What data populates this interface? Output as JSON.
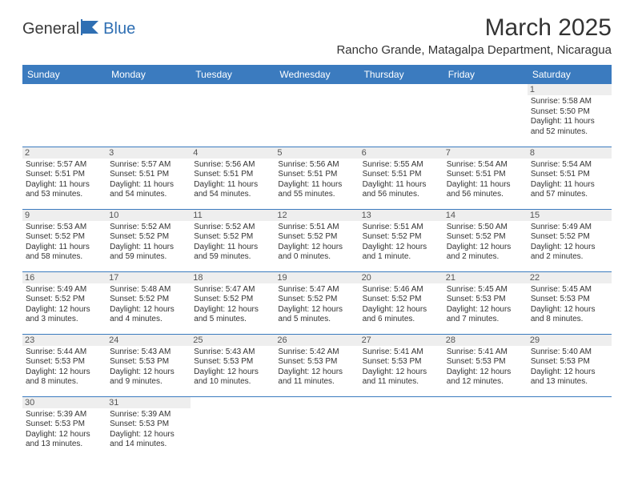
{
  "brand": {
    "text1": "General",
    "text2": "Blue"
  },
  "header": {
    "month_title": "March 2025",
    "location": "Rancho Grande, Matagalpa Department, Nicaragua"
  },
  "colors": {
    "header_bg": "#3b7bbf",
    "header_fg": "#ffffff",
    "daynum_bg": "#eeeeee",
    "border": "#3b7bbf",
    "text": "#333333",
    "brand_blue": "#2f6fb3"
  },
  "typography": {
    "month_title_fontsize": 30,
    "location_fontsize": 15,
    "day_header_fontsize": 12,
    "daynum_fontsize": 11,
    "details_fontsize": 10
  },
  "calendar": {
    "type": "table",
    "columns": [
      "Sunday",
      "Monday",
      "Tuesday",
      "Wednesday",
      "Thursday",
      "Friday",
      "Saturday"
    ],
    "weeks": [
      [
        null,
        null,
        null,
        null,
        null,
        null,
        {
          "n": "1",
          "sr": "5:58 AM",
          "ss": "5:50 PM",
          "dl": "11 hours and 52 minutes."
        }
      ],
      [
        {
          "n": "2",
          "sr": "5:57 AM",
          "ss": "5:51 PM",
          "dl": "11 hours and 53 minutes."
        },
        {
          "n": "3",
          "sr": "5:57 AM",
          "ss": "5:51 PM",
          "dl": "11 hours and 54 minutes."
        },
        {
          "n": "4",
          "sr": "5:56 AM",
          "ss": "5:51 PM",
          "dl": "11 hours and 54 minutes."
        },
        {
          "n": "5",
          "sr": "5:56 AM",
          "ss": "5:51 PM",
          "dl": "11 hours and 55 minutes."
        },
        {
          "n": "6",
          "sr": "5:55 AM",
          "ss": "5:51 PM",
          "dl": "11 hours and 56 minutes."
        },
        {
          "n": "7",
          "sr": "5:54 AM",
          "ss": "5:51 PM",
          "dl": "11 hours and 56 minutes."
        },
        {
          "n": "8",
          "sr": "5:54 AM",
          "ss": "5:51 PM",
          "dl": "11 hours and 57 minutes."
        }
      ],
      [
        {
          "n": "9",
          "sr": "5:53 AM",
          "ss": "5:52 PM",
          "dl": "11 hours and 58 minutes."
        },
        {
          "n": "10",
          "sr": "5:52 AM",
          "ss": "5:52 PM",
          "dl": "11 hours and 59 minutes."
        },
        {
          "n": "11",
          "sr": "5:52 AM",
          "ss": "5:52 PM",
          "dl": "11 hours and 59 minutes."
        },
        {
          "n": "12",
          "sr": "5:51 AM",
          "ss": "5:52 PM",
          "dl": "12 hours and 0 minutes."
        },
        {
          "n": "13",
          "sr": "5:51 AM",
          "ss": "5:52 PM",
          "dl": "12 hours and 1 minute."
        },
        {
          "n": "14",
          "sr": "5:50 AM",
          "ss": "5:52 PM",
          "dl": "12 hours and 2 minutes."
        },
        {
          "n": "15",
          "sr": "5:49 AM",
          "ss": "5:52 PM",
          "dl": "12 hours and 2 minutes."
        }
      ],
      [
        {
          "n": "16",
          "sr": "5:49 AM",
          "ss": "5:52 PM",
          "dl": "12 hours and 3 minutes."
        },
        {
          "n": "17",
          "sr": "5:48 AM",
          "ss": "5:52 PM",
          "dl": "12 hours and 4 minutes."
        },
        {
          "n": "18",
          "sr": "5:47 AM",
          "ss": "5:52 PM",
          "dl": "12 hours and 5 minutes."
        },
        {
          "n": "19",
          "sr": "5:47 AM",
          "ss": "5:52 PM",
          "dl": "12 hours and 5 minutes."
        },
        {
          "n": "20",
          "sr": "5:46 AM",
          "ss": "5:52 PM",
          "dl": "12 hours and 6 minutes."
        },
        {
          "n": "21",
          "sr": "5:45 AM",
          "ss": "5:53 PM",
          "dl": "12 hours and 7 minutes."
        },
        {
          "n": "22",
          "sr": "5:45 AM",
          "ss": "5:53 PM",
          "dl": "12 hours and 8 minutes."
        }
      ],
      [
        {
          "n": "23",
          "sr": "5:44 AM",
          "ss": "5:53 PM",
          "dl": "12 hours and 8 minutes."
        },
        {
          "n": "24",
          "sr": "5:43 AM",
          "ss": "5:53 PM",
          "dl": "12 hours and 9 minutes."
        },
        {
          "n": "25",
          "sr": "5:43 AM",
          "ss": "5:53 PM",
          "dl": "12 hours and 10 minutes."
        },
        {
          "n": "26",
          "sr": "5:42 AM",
          "ss": "5:53 PM",
          "dl": "12 hours and 11 minutes."
        },
        {
          "n": "27",
          "sr": "5:41 AM",
          "ss": "5:53 PM",
          "dl": "12 hours and 11 minutes."
        },
        {
          "n": "28",
          "sr": "5:41 AM",
          "ss": "5:53 PM",
          "dl": "12 hours and 12 minutes."
        },
        {
          "n": "29",
          "sr": "5:40 AM",
          "ss": "5:53 PM",
          "dl": "12 hours and 13 minutes."
        }
      ],
      [
        {
          "n": "30",
          "sr": "5:39 AM",
          "ss": "5:53 PM",
          "dl": "12 hours and 13 minutes."
        },
        {
          "n": "31",
          "sr": "5:39 AM",
          "ss": "5:53 PM",
          "dl": "12 hours and 14 minutes."
        },
        null,
        null,
        null,
        null,
        null
      ]
    ],
    "labels": {
      "sunrise": "Sunrise:",
      "sunset": "Sunset:",
      "daylight": "Daylight:"
    }
  }
}
